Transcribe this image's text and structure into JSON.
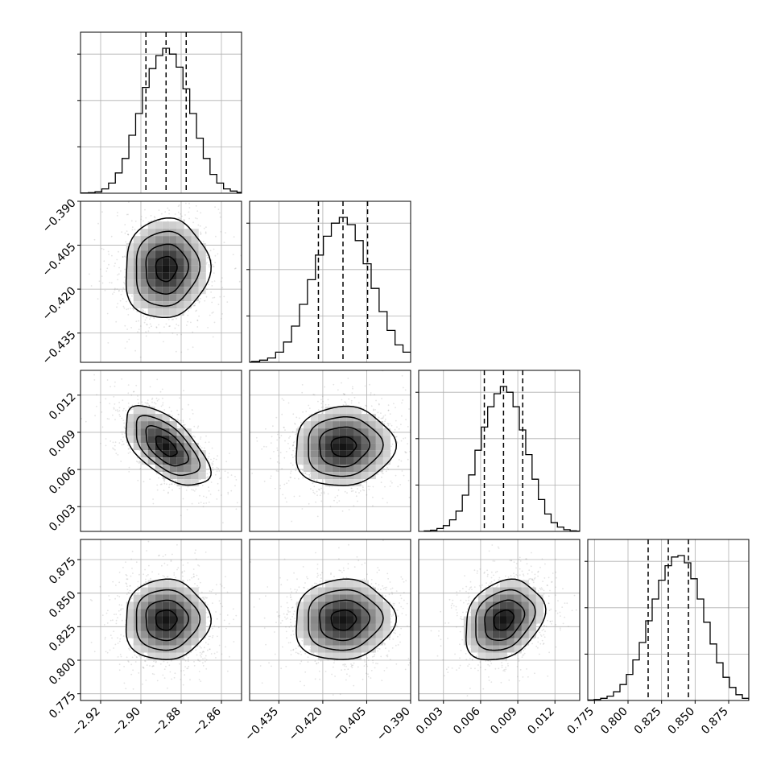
{
  "chart_data": {
    "type": "corner",
    "parameters": [
      {
        "index": 0,
        "mean": -2.8875,
        "std": 0.0105,
        "range": [
          -2.93,
          -2.85
        ],
        "ticks": [
          -2.92,
          -2.9,
          -2.88,
          -2.86
        ],
        "tick_labels": [
          "−2.92",
          "−2.90",
          "−2.88",
          "−2.86"
        ],
        "quantiles": [
          -2.8975,
          -2.8875,
          -2.8775
        ],
        "hist": [
          0.002,
          0.004,
          0.01,
          0.03,
          0.07,
          0.14,
          0.24,
          0.4,
          0.55,
          0.73,
          0.86,
          0.95,
          1.0,
          0.96,
          0.87,
          0.72,
          0.55,
          0.38,
          0.24,
          0.13,
          0.07,
          0.03,
          0.015,
          0.006,
          0.003
        ]
      },
      {
        "index": 1,
        "mean": -0.413,
        "std": 0.0085,
        "range": [
          -0.445,
          -0.39
        ],
        "ticks": [
          -0.435,
          -0.42,
          -0.405,
          -0.39
        ],
        "tick_labels": [
          "−0.435",
          "−0.420",
          "−0.405",
          "−0.390"
        ],
        "quantiles": [
          -0.4215,
          -0.4131,
          -0.4047
        ],
        "hist": [
          0.002,
          0.006,
          0.015,
          0.03,
          0.07,
          0.14,
          0.25,
          0.4,
          0.57,
          0.74,
          0.87,
          0.96,
          1.0,
          0.95,
          0.84,
          0.68,
          0.51,
          0.35,
          0.22,
          0.12,
          0.07,
          0.035,
          0.015,
          0.006,
          0.002
        ]
      },
      {
        "index": 2,
        "mean": 0.00785,
        "std": 0.0016,
        "range": [
          0.001,
          0.014
        ],
        "ticks": [
          0.003,
          0.006,
          0.009,
          0.012
        ],
        "tick_labels": [
          "0.003",
          "0.006",
          "0.009",
          "0.012"
        ],
        "quantiles": [
          0.0063,
          0.00785,
          0.0094
        ],
        "hist": [
          0.003,
          0.008,
          0.02,
          0.04,
          0.08,
          0.14,
          0.25,
          0.39,
          0.56,
          0.72,
          0.86,
          0.95,
          1.0,
          0.96,
          0.86,
          0.7,
          0.53,
          0.36,
          0.22,
          0.12,
          0.06,
          0.03,
          0.012,
          0.004,
          0.002
        ]
      },
      {
        "index": 3,
        "mean": 0.83,
        "std": 0.015,
        "range": [
          0.77,
          0.89
        ],
        "ticks": [
          0.775,
          0.8,
          0.825,
          0.85,
          0.875
        ],
        "tick_labels": [
          "0.775",
          "0.800",
          "0.825",
          "0.850",
          "0.875"
        ],
        "quantiles": [
          0.815,
          0.83,
          0.845
        ],
        "hist": [
          0.003,
          0.007,
          0.015,
          0.03,
          0.06,
          0.11,
          0.18,
          0.28,
          0.4,
          0.55,
          0.7,
          0.83,
          0.93,
          0.99,
          1.0,
          0.95,
          0.84,
          0.7,
          0.54,
          0.39,
          0.26,
          0.16,
          0.09,
          0.04,
          0.015
        ]
      }
    ],
    "correlations": {
      "1_0": 0.05,
      "2_0": -0.6,
      "2_1": 0.05,
      "3_0": 0.02,
      "3_1": 0.05,
      "3_2": 0.25
    },
    "grid": true,
    "scatter_color": "#7f7f7f",
    "hist_color": "#000000",
    "density_cmap": [
      "#ffffff",
      "#000000"
    ],
    "contour_color": "#000000"
  }
}
